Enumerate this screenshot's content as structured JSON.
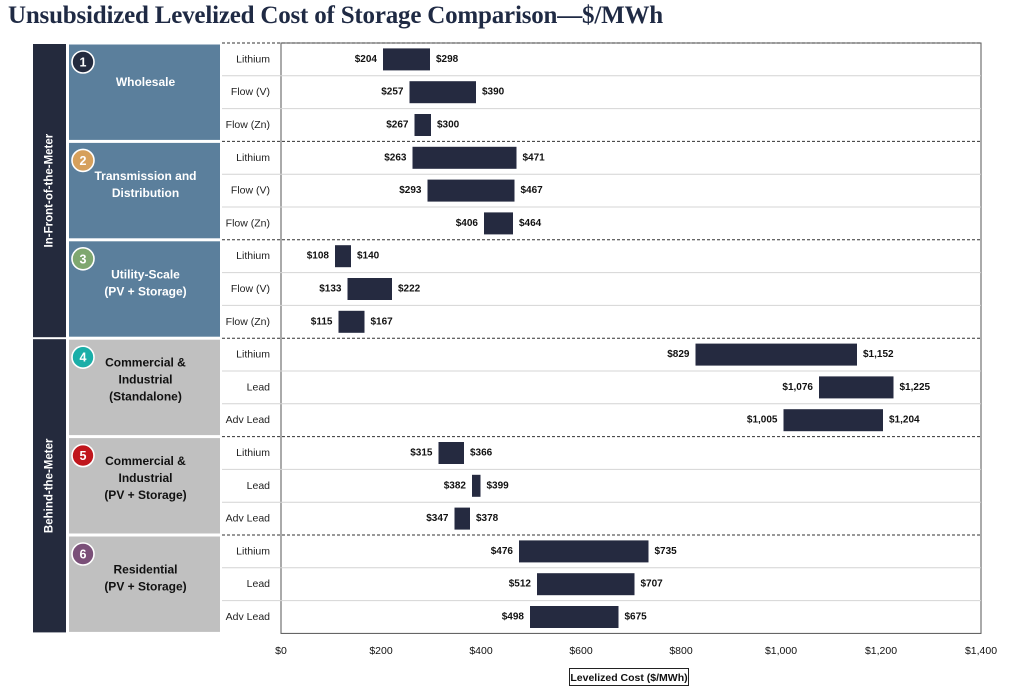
{
  "title": "Unsubsidized Levelized Cost of Storage Comparison—$/MWh",
  "colors": {
    "bar": "#252a40",
    "in_front_panel": "#5b7f9c",
    "behind_panel": "#c0c0c0",
    "super_label_bg": "#242a3d"
  },
  "chart_data": {
    "type": "bar",
    "orientation": "horizontal",
    "bar_style": "floating-range",
    "title": "Unsubsidized Levelized Cost of Storage Comparison—$/MWh",
    "xlabel": "Levelized Cost ($/MWh)",
    "xlim": [
      0,
      1400
    ],
    "xticks": [
      0,
      200,
      400,
      600,
      800,
      1000,
      1200,
      1400
    ],
    "xtick_labels": [
      "$0",
      "$200",
      "$400",
      "$600",
      "$800",
      "$1,000",
      "$1,200",
      "$1,400"
    ],
    "groups": [
      {
        "super_label": "In-Front-of-the-Meter",
        "use_cases": [
          {
            "number": "1",
            "badge_color": "#232a3e",
            "name_lines": [
              "Wholesale"
            ],
            "name_color": "#ffffff",
            "rows": [
              {
                "technology": "Lithium",
                "low": 204,
                "high": 298,
                "low_label": "$204",
                "high_label": "$298"
              },
              {
                "technology": "Flow (V)",
                "low": 257,
                "high": 390,
                "low_label": "$257",
                "high_label": "$390"
              },
              {
                "technology": "Flow (Zn)",
                "low": 267,
                "high": 300,
                "low_label": "$267",
                "high_label": "$300"
              }
            ]
          },
          {
            "number": "2",
            "badge_color": "#d6a05c",
            "name_lines": [
              "Transmission and",
              "Distribution"
            ],
            "name_color": "#ffffff",
            "rows": [
              {
                "technology": "Lithium",
                "low": 263,
                "high": 471,
                "low_label": "$263",
                "high_label": "$471"
              },
              {
                "technology": "Flow (V)",
                "low": 293,
                "high": 467,
                "low_label": "$293",
                "high_label": "$467"
              },
              {
                "technology": "Flow (Zn)",
                "low": 406,
                "high": 464,
                "low_label": "$406",
                "high_label": "$464"
              }
            ]
          },
          {
            "number": "3",
            "badge_color": "#7fa76f",
            "name_lines": [
              "Utility-Scale",
              "(PV + Storage)"
            ],
            "name_color": "#ffffff",
            "rows": [
              {
                "technology": "Lithium",
                "low": 108,
                "high": 140,
                "low_label": "$108",
                "high_label": "$140"
              },
              {
                "technology": "Flow (V)",
                "low": 133,
                "high": 222,
                "low_label": "$133",
                "high_label": "$222"
              },
              {
                "technology": "Flow (Zn)",
                "low": 115,
                "high": 167,
                "low_label": "$115",
                "high_label": "$167"
              }
            ]
          }
        ]
      },
      {
        "super_label": "Behind-the-Meter",
        "use_cases": [
          {
            "number": "4",
            "badge_color": "#1aaea8",
            "name_lines": [
              "Commercial &",
              "Industrial",
              "(Standalone)"
            ],
            "name_color": "#111111",
            "rows": [
              {
                "technology": "Lithium",
                "low": 829,
                "high": 1152,
                "low_label": "$829",
                "high_label": "$1,152"
              },
              {
                "technology": "Lead",
                "low": 1076,
                "high": 1225,
                "low_label": "$1,076",
                "high_label": "$1,225"
              },
              {
                "technology": "Adv Lead",
                "low": 1005,
                "high": 1204,
                "low_label": "$1,005",
                "high_label": "$1,204"
              }
            ]
          },
          {
            "number": "5",
            "badge_color": "#c0161d",
            "name_lines": [
              "Commercial &",
              "Industrial",
              "(PV + Storage)"
            ],
            "name_color": "#111111",
            "rows": [
              {
                "technology": "Lithium",
                "low": 315,
                "high": 366,
                "low_label": "$315",
                "high_label": "$366"
              },
              {
                "technology": "Lead",
                "low": 382,
                "high": 399,
                "low_label": "$382",
                "high_label": "$399"
              },
              {
                "technology": "Adv Lead",
                "low": 347,
                "high": 378,
                "low_label": "$347",
                "high_label": "$378"
              }
            ]
          },
          {
            "number": "6",
            "badge_color": "#7a4f78",
            "name_lines": [
              "Residential",
              "(PV + Storage)"
            ],
            "name_color": "#111111",
            "rows": [
              {
                "technology": "Lithium",
                "low": 476,
                "high": 735,
                "low_label": "$476",
                "high_label": "$735"
              },
              {
                "technology": "Lead",
                "low": 512,
                "high": 707,
                "low_label": "$512",
                "high_label": "$707"
              },
              {
                "technology": "Adv Lead",
                "low": 498,
                "high": 675,
                "low_label": "$498",
                "high_label": "$675"
              }
            ]
          }
        ]
      }
    ]
  }
}
